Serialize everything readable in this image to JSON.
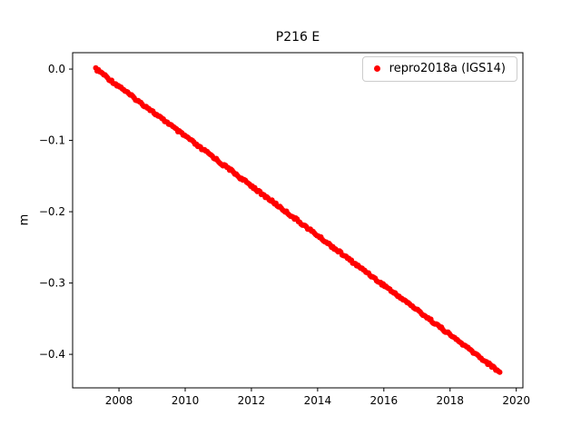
{
  "chart_data": {
    "type": "scatter",
    "title": "P216 E",
    "xlabel": "",
    "ylabel": "m",
    "xlim": [
      2006.6,
      2020.2
    ],
    "ylim": [
      -0.447,
      0.023
    ],
    "grid": false,
    "legend_position": "upper right",
    "xtick_values": [
      2008,
      2010,
      2012,
      2014,
      2016,
      2018,
      2020
    ],
    "xtick_labels": [
      "2008",
      "2010",
      "2012",
      "2014",
      "2016",
      "2018",
      "2020"
    ],
    "ytick_values": [
      0.0,
      -0.1,
      -0.2,
      -0.3,
      -0.4
    ],
    "ytick_labels": [
      "0.0",
      "−0.1",
      "−0.2",
      "−0.3",
      "−0.4"
    ],
    "series": [
      {
        "name": "repro2018a (IGS14)",
        "color": "#ff0000",
        "marker": "dot",
        "x_encoding": "x[i] = x_start + i * x_step",
        "x_start": 2007.3,
        "x_step": 0.2,
        "y": [
          0.0,
          -0.006,
          -0.014,
          -0.021,
          -0.027,
          -0.035,
          -0.042,
          -0.049,
          -0.055,
          -0.063,
          -0.07,
          -0.076,
          -0.084,
          -0.091,
          -0.097,
          -0.105,
          -0.112,
          -0.118,
          -0.125,
          -0.133,
          -0.139,
          -0.146,
          -0.154,
          -0.16,
          -0.167,
          -0.175,
          -0.181,
          -0.188,
          -0.195,
          -0.202,
          -0.209,
          -0.216,
          -0.223,
          -0.23,
          -0.237,
          -0.244,
          -0.251,
          -0.258,
          -0.265,
          -0.272,
          -0.279,
          -0.285,
          -0.293,
          -0.3,
          -0.306,
          -0.314,
          -0.32,
          -0.327,
          -0.334,
          -0.341,
          -0.348,
          -0.355,
          -0.362,
          -0.369,
          -0.376,
          -0.383,
          -0.39,
          -0.397,
          -0.404,
          -0.411,
          -0.418,
          -0.425
        ]
      }
    ]
  }
}
